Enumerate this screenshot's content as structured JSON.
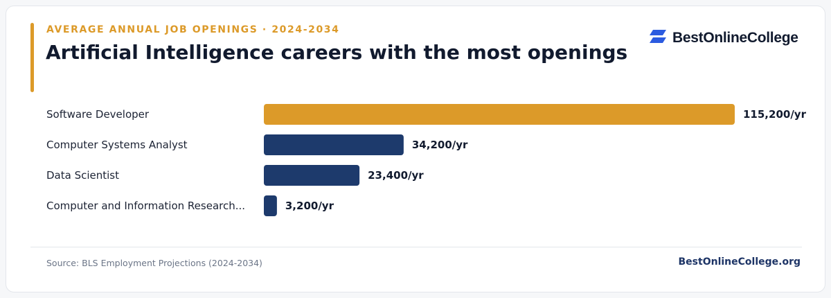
{
  "header": {
    "eyebrow": "AVERAGE ANNUAL JOB OPENINGS · 2024-2034",
    "title": "Artificial Intelligence careers with the most openings"
  },
  "brand": {
    "logo_text": "BestOnlineCollege",
    "icon": "stacked-parallelogram-logo-icon"
  },
  "colors": {
    "accent": "#dc9a29",
    "bar_primary": "#dc9a29",
    "bar_secondary": "#1d3a6c",
    "logo_blue": "#2b5be0"
  },
  "chart_data": {
    "type": "bar",
    "orientation": "horizontal",
    "categories": [
      "Software Developer",
      "Computer Systems Analyst",
      "Data Scientist",
      "Computer and Information Research..."
    ],
    "values": [
      115200,
      34200,
      23400,
      3200
    ],
    "value_labels": [
      "115,200/yr",
      "34,200/yr",
      "23,400/yr",
      "3,200/yr"
    ],
    "xlim": [
      0,
      115200
    ],
    "grid": false,
    "legend": "none"
  },
  "footer": {
    "source": "Source: BLS Employment Projections (2024-2034)",
    "site": "BestOnlineCollege.org"
  }
}
